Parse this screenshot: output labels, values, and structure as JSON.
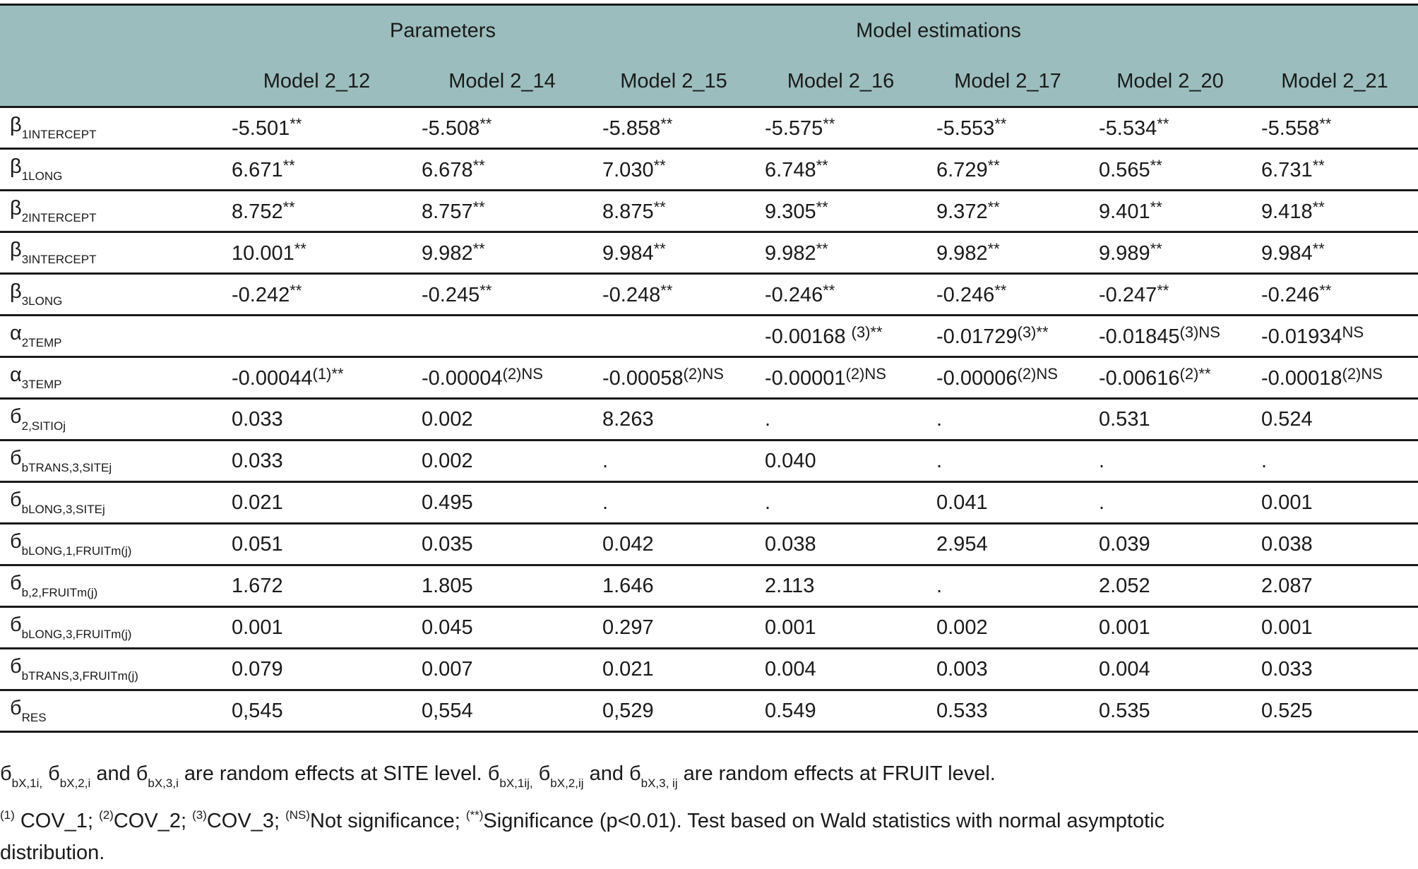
{
  "table": {
    "header": {
      "group_left": "Parameters",
      "group_right": "Model estimations",
      "columns": [
        "Model 2_12",
        "Model 2_14",
        "Model 2_15",
        "Model 2_16",
        "Model 2_17",
        "Model 2_20",
        "Model 2_21"
      ]
    },
    "rows": [
      [
        {
          "main": "β",
          "sub": "1INTERCEPT"
        },
        {
          "main": "-5.501",
          "sup": "**"
        },
        {
          "main": "-5.508",
          "sup": "**"
        },
        {
          "main": "-5.858",
          "sup": "**"
        },
        {
          "main": "-5.575",
          "sup": "**"
        },
        {
          "main": "-5.553",
          "sup": "**"
        },
        {
          "main": "-5.534",
          "sup": "**"
        },
        {
          "main": "-5.558",
          "sup": "**"
        }
      ],
      [
        {
          "main": "β",
          "sub": "1LONG"
        },
        {
          "main": "6.671",
          "sup": "**"
        },
        {
          "main": "6.678",
          "sup": "**"
        },
        {
          "main": "7.030",
          "sup": "**"
        },
        {
          "main": "6.748",
          "sup": "**"
        },
        {
          "main": "6.729",
          "sup": "**"
        },
        {
          "main": "0.565",
          "sup": "**"
        },
        {
          "main": "6.731",
          "sup": "**"
        }
      ],
      [
        {
          "main": "β",
          "sub": "2INTERCEPT"
        },
        {
          "main": "8.752",
          "sup": "**"
        },
        {
          "main": "8.757",
          "sup": "**"
        },
        {
          "main": "8.875",
          "sup": "**"
        },
        {
          "main": "9.305",
          "sup": "**"
        },
        {
          "main": "9.372",
          "sup": "**"
        },
        {
          "main": "9.401",
          "sup": "**"
        },
        {
          "main": "9.418",
          "sup": "**"
        }
      ],
      [
        {
          "main": "β",
          "sub": "3INTERCEPT"
        },
        {
          "main": "10.001",
          "sup": "**"
        },
        {
          "main": "9.982",
          "sup": "**"
        },
        {
          "main": "9.984",
          "sup": "**"
        },
        {
          "main": "9.982",
          "sup": "**"
        },
        {
          "main": "9.982",
          "sup": "**"
        },
        {
          "main": "9.989",
          "sup": "**"
        },
        {
          "main": "9.984",
          "sup": "**"
        }
      ],
      [
        {
          "main": "β",
          "sub": "3LONG"
        },
        {
          "main": "-0.242",
          "sup": "**"
        },
        {
          "main": "-0.245",
          "sup": "**"
        },
        {
          "main": "-0.248",
          "sup": "**"
        },
        {
          "main": "-0.246",
          "sup": "**"
        },
        {
          "main": "-0.246",
          "sup": "**"
        },
        {
          "main": "-0.247",
          "sup": "**"
        },
        {
          "main": "-0.246",
          "sup": "**"
        }
      ],
      [
        {
          "main": "α",
          "sub": "2TEMP"
        },
        null,
        null,
        null,
        {
          "main": "-0.00168 ",
          "sup": "(3)**"
        },
        {
          "main": "-0.01729",
          "sup": "(3)**"
        },
        {
          "main": "-0.01845",
          "sup": "(3)NS"
        },
        {
          "main": "-0.01934",
          "sup": "NS"
        }
      ],
      [
        {
          "main": "α",
          "sub": "3TEMP"
        },
        {
          "main": "-0.00044",
          "sup": "(1)**"
        },
        {
          "main": "-0.00004",
          "sup": "(2)NS"
        },
        {
          "main": "-0.00058",
          "sup": "(2)NS"
        },
        {
          "main": "-0.00001",
          "sup": "(2)NS"
        },
        {
          "main": "-0.00006",
          "sup": "(2)NS"
        },
        {
          "main": "-0.00616",
          "sup": "(2)**"
        },
        {
          "main": "-0.00018",
          "sup": "(2)NS"
        }
      ],
      [
        {
          "main": "б",
          "sub": "2,SITIOj"
        },
        "0.033",
        "0.002",
        "8.263",
        ".",
        ".",
        "0.531",
        "0.524"
      ],
      [
        {
          "main": "б",
          "sub": "bTRANS,3,SITEj"
        },
        "0.033",
        "0.002",
        ".",
        "0.040",
        ".",
        ".",
        "."
      ],
      [
        {
          "main": "б",
          "sub": "bLONG,3,SITEj"
        },
        "0.021",
        "0.495",
        ".",
        ".",
        "0.041",
        ".",
        "0.001"
      ],
      [
        {
          "main": "б",
          "sub": "bLONG,1,FRUITm(j)"
        },
        "0.051",
        "0.035",
        "0.042",
        "0.038",
        "2.954",
        "0.039",
        "0.038"
      ],
      [
        {
          "main": "б",
          "sub": "b,2,FRUITm(j)"
        },
        "1.672",
        "1.805",
        "1.646",
        "2.113",
        ".",
        "2.052",
        "2.087"
      ],
      [
        {
          "main": "б",
          "sub": "bLONG,3,FRUITm(j)"
        },
        "0.001",
        "0.045",
        "0.297",
        "0.001",
        "0.002",
        "0.001",
        "0.001"
      ],
      [
        {
          "main": "б",
          "sub": "bTRANS,3,FRUITm(j)"
        },
        "0.079",
        "0.007",
        "0.021",
        "0.004",
        "0.003",
        "0.004",
        "0.033"
      ],
      [
        {
          "main": "б",
          "sub": "RES"
        },
        "0,545",
        "0,554",
        "0,529",
        "0.549",
        "0.533",
        "0.535",
        "0.525"
      ]
    ]
  },
  "footnotes": [
    [
      {
        "main": "б",
        "sub": "bX,1i,"
      },
      {
        "main": " б",
        "sub": "bX,2,i"
      },
      {
        "main": " and б",
        "sub": "bX,3,i"
      },
      {
        "main": " are random effects at SITE level. б",
        "sub": "bX,1ij,"
      },
      {
        "main": " б",
        "sub": "bX,2,ij"
      },
      {
        "main": " and б",
        "sub": "bX,3, ij"
      },
      {
        "main": " are random effects at FRUIT level."
      }
    ],
    [
      {
        "sup": "(1)",
        "main": " COV_1; "
      },
      {
        "sup": "(2)",
        "main": "COV_2; "
      },
      {
        "sup": "(3)",
        "main": "COV_3; "
      },
      {
        "sup": "(NS)",
        "main": "Not significance; "
      },
      {
        "sup": "(**)",
        "main": "Significance (p<0.01). Test based on Wald statistics with normal asymptotic distribution."
      }
    ]
  ]
}
